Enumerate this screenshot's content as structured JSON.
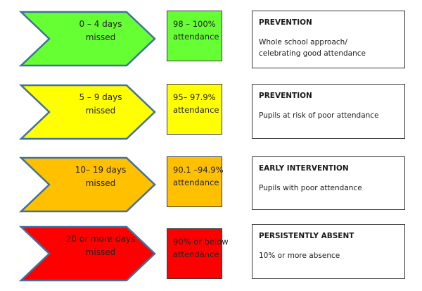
{
  "colors": {
    "green": "#66ff33",
    "yellow": "#ffff00",
    "orange": "#ffc000",
    "red": "#ff0000",
    "outline": "#41719c"
  },
  "rows": [
    {
      "color_key": "green",
      "days_line1": "0 – 4 days",
      "days_line2": "missed",
      "attendance_line1": "98 – 100%",
      "attendance_line2": "attendance",
      "heading": "PREVENTION",
      "desc_line1": "Whole school approach/",
      "desc_line2": "celebrating good attendance"
    },
    {
      "color_key": "yellow",
      "days_line1": "5 – 9 days",
      "days_line2": "missed",
      "attendance_line1": "95– 97.9%",
      "attendance_line2": "attendance",
      "heading": "PREVENTION",
      "desc_line1": "Pupils at risk of poor attendance",
      "desc_line2": ""
    },
    {
      "color_key": "orange",
      "days_line1": "10– 19 days",
      "days_line2": "missed",
      "attendance_line1": "90.1 –94.9%",
      "attendance_line2": "attendance",
      "heading": "EARLY INTERVENTION",
      "desc_line1": "Pupils with poor attendance",
      "desc_line2": ""
    },
    {
      "color_key": "red",
      "days_line1": "20 or more days",
      "days_line2": "missed",
      "attendance_line1": "90% or below",
      "attendance_line2": "attendance",
      "heading": "PERSISTENTLY ABSENT",
      "desc_line1": "10% or more absence",
      "desc_line2": ""
    }
  ]
}
